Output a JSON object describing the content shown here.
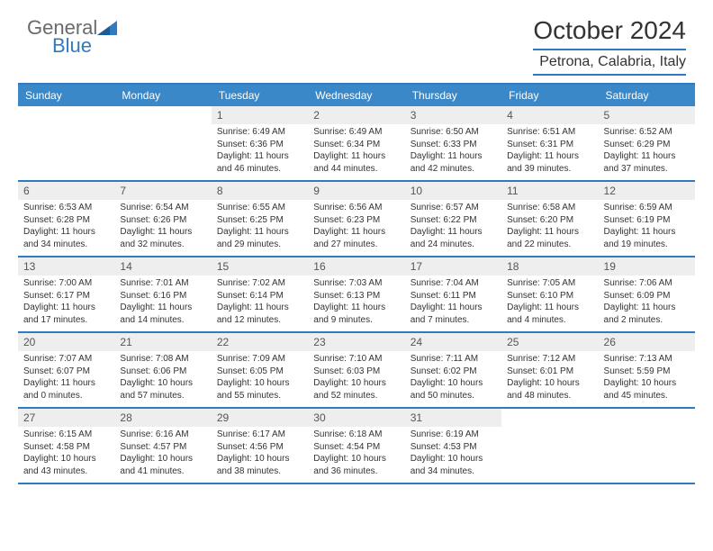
{
  "brand": {
    "line1": "General",
    "line2": "Blue"
  },
  "title": "October 2024",
  "location": "Petrona, Calabria, Italy",
  "colors": {
    "accent": "#2f7ac0",
    "headerBg": "#3b88c8",
    "numBg": "#eeeeee",
    "text": "#333333",
    "muted": "#6a6a6a"
  },
  "dayNames": [
    "Sunday",
    "Monday",
    "Tuesday",
    "Wednesday",
    "Thursday",
    "Friday",
    "Saturday"
  ],
  "weeks": [
    [
      {
        "empty": true
      },
      {
        "empty": true
      },
      {
        "num": "1",
        "sunrise": "Sunrise: 6:49 AM",
        "sunset": "Sunset: 6:36 PM",
        "daylight": "Daylight: 11 hours and 46 minutes."
      },
      {
        "num": "2",
        "sunrise": "Sunrise: 6:49 AM",
        "sunset": "Sunset: 6:34 PM",
        "daylight": "Daylight: 11 hours and 44 minutes."
      },
      {
        "num": "3",
        "sunrise": "Sunrise: 6:50 AM",
        "sunset": "Sunset: 6:33 PM",
        "daylight": "Daylight: 11 hours and 42 minutes."
      },
      {
        "num": "4",
        "sunrise": "Sunrise: 6:51 AM",
        "sunset": "Sunset: 6:31 PM",
        "daylight": "Daylight: 11 hours and 39 minutes."
      },
      {
        "num": "5",
        "sunrise": "Sunrise: 6:52 AM",
        "sunset": "Sunset: 6:29 PM",
        "daylight": "Daylight: 11 hours and 37 minutes."
      }
    ],
    [
      {
        "num": "6",
        "sunrise": "Sunrise: 6:53 AM",
        "sunset": "Sunset: 6:28 PM",
        "daylight": "Daylight: 11 hours and 34 minutes."
      },
      {
        "num": "7",
        "sunrise": "Sunrise: 6:54 AM",
        "sunset": "Sunset: 6:26 PM",
        "daylight": "Daylight: 11 hours and 32 minutes."
      },
      {
        "num": "8",
        "sunrise": "Sunrise: 6:55 AM",
        "sunset": "Sunset: 6:25 PM",
        "daylight": "Daylight: 11 hours and 29 minutes."
      },
      {
        "num": "9",
        "sunrise": "Sunrise: 6:56 AM",
        "sunset": "Sunset: 6:23 PM",
        "daylight": "Daylight: 11 hours and 27 minutes."
      },
      {
        "num": "10",
        "sunrise": "Sunrise: 6:57 AM",
        "sunset": "Sunset: 6:22 PM",
        "daylight": "Daylight: 11 hours and 24 minutes."
      },
      {
        "num": "11",
        "sunrise": "Sunrise: 6:58 AM",
        "sunset": "Sunset: 6:20 PM",
        "daylight": "Daylight: 11 hours and 22 minutes."
      },
      {
        "num": "12",
        "sunrise": "Sunrise: 6:59 AM",
        "sunset": "Sunset: 6:19 PM",
        "daylight": "Daylight: 11 hours and 19 minutes."
      }
    ],
    [
      {
        "num": "13",
        "sunrise": "Sunrise: 7:00 AM",
        "sunset": "Sunset: 6:17 PM",
        "daylight": "Daylight: 11 hours and 17 minutes."
      },
      {
        "num": "14",
        "sunrise": "Sunrise: 7:01 AM",
        "sunset": "Sunset: 6:16 PM",
        "daylight": "Daylight: 11 hours and 14 minutes."
      },
      {
        "num": "15",
        "sunrise": "Sunrise: 7:02 AM",
        "sunset": "Sunset: 6:14 PM",
        "daylight": "Daylight: 11 hours and 12 minutes."
      },
      {
        "num": "16",
        "sunrise": "Sunrise: 7:03 AM",
        "sunset": "Sunset: 6:13 PM",
        "daylight": "Daylight: 11 hours and 9 minutes."
      },
      {
        "num": "17",
        "sunrise": "Sunrise: 7:04 AM",
        "sunset": "Sunset: 6:11 PM",
        "daylight": "Daylight: 11 hours and 7 minutes."
      },
      {
        "num": "18",
        "sunrise": "Sunrise: 7:05 AM",
        "sunset": "Sunset: 6:10 PM",
        "daylight": "Daylight: 11 hours and 4 minutes."
      },
      {
        "num": "19",
        "sunrise": "Sunrise: 7:06 AM",
        "sunset": "Sunset: 6:09 PM",
        "daylight": "Daylight: 11 hours and 2 minutes."
      }
    ],
    [
      {
        "num": "20",
        "sunrise": "Sunrise: 7:07 AM",
        "sunset": "Sunset: 6:07 PM",
        "daylight": "Daylight: 11 hours and 0 minutes."
      },
      {
        "num": "21",
        "sunrise": "Sunrise: 7:08 AM",
        "sunset": "Sunset: 6:06 PM",
        "daylight": "Daylight: 10 hours and 57 minutes."
      },
      {
        "num": "22",
        "sunrise": "Sunrise: 7:09 AM",
        "sunset": "Sunset: 6:05 PM",
        "daylight": "Daylight: 10 hours and 55 minutes."
      },
      {
        "num": "23",
        "sunrise": "Sunrise: 7:10 AM",
        "sunset": "Sunset: 6:03 PM",
        "daylight": "Daylight: 10 hours and 52 minutes."
      },
      {
        "num": "24",
        "sunrise": "Sunrise: 7:11 AM",
        "sunset": "Sunset: 6:02 PM",
        "daylight": "Daylight: 10 hours and 50 minutes."
      },
      {
        "num": "25",
        "sunrise": "Sunrise: 7:12 AM",
        "sunset": "Sunset: 6:01 PM",
        "daylight": "Daylight: 10 hours and 48 minutes."
      },
      {
        "num": "26",
        "sunrise": "Sunrise: 7:13 AM",
        "sunset": "Sunset: 5:59 PM",
        "daylight": "Daylight: 10 hours and 45 minutes."
      }
    ],
    [
      {
        "num": "27",
        "sunrise": "Sunrise: 6:15 AM",
        "sunset": "Sunset: 4:58 PM",
        "daylight": "Daylight: 10 hours and 43 minutes."
      },
      {
        "num": "28",
        "sunrise": "Sunrise: 6:16 AM",
        "sunset": "Sunset: 4:57 PM",
        "daylight": "Daylight: 10 hours and 41 minutes."
      },
      {
        "num": "29",
        "sunrise": "Sunrise: 6:17 AM",
        "sunset": "Sunset: 4:56 PM",
        "daylight": "Daylight: 10 hours and 38 minutes."
      },
      {
        "num": "30",
        "sunrise": "Sunrise: 6:18 AM",
        "sunset": "Sunset: 4:54 PM",
        "daylight": "Daylight: 10 hours and 36 minutes."
      },
      {
        "num": "31",
        "sunrise": "Sunrise: 6:19 AM",
        "sunset": "Sunset: 4:53 PM",
        "daylight": "Daylight: 10 hours and 34 minutes."
      },
      {
        "empty": true
      },
      {
        "empty": true
      }
    ]
  ]
}
